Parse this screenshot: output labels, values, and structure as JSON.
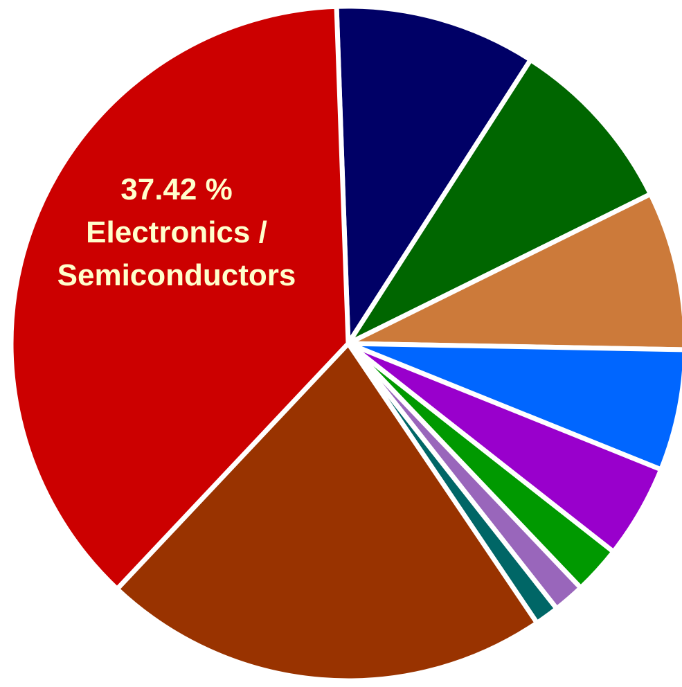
{
  "chart_data": {
    "type": "pie",
    "title": "",
    "legend": "none",
    "start_angle_deg": -2.0,
    "direction": "clockwise",
    "slices": [
      {
        "value": 9.65,
        "color": "#000066",
        "label": ""
      },
      {
        "value": 8.6,
        "color": "#006600",
        "label": ""
      },
      {
        "value": 7.6,
        "color": "#cc7a3a",
        "label": ""
      },
      {
        "value": 5.8,
        "color": "#0066ff",
        "label": ""
      },
      {
        "value": 4.5,
        "color": "#9900cc",
        "label": ""
      },
      {
        "value": 2.3,
        "color": "#009900",
        "label": ""
      },
      {
        "value": 1.5,
        "color": "#9966bb",
        "label": ""
      },
      {
        "value": 1.15,
        "color": "#006666",
        "label": ""
      },
      {
        "value": 21.48,
        "color": "#993300",
        "label": ""
      },
      {
        "value": 37.42,
        "color": "#cc0000",
        "label": "37.42 % Electronics / Semiconductors",
        "label_lines": [
          "37.42 %",
          "Electronics /",
          "Semiconductors"
        ]
      }
    ]
  }
}
